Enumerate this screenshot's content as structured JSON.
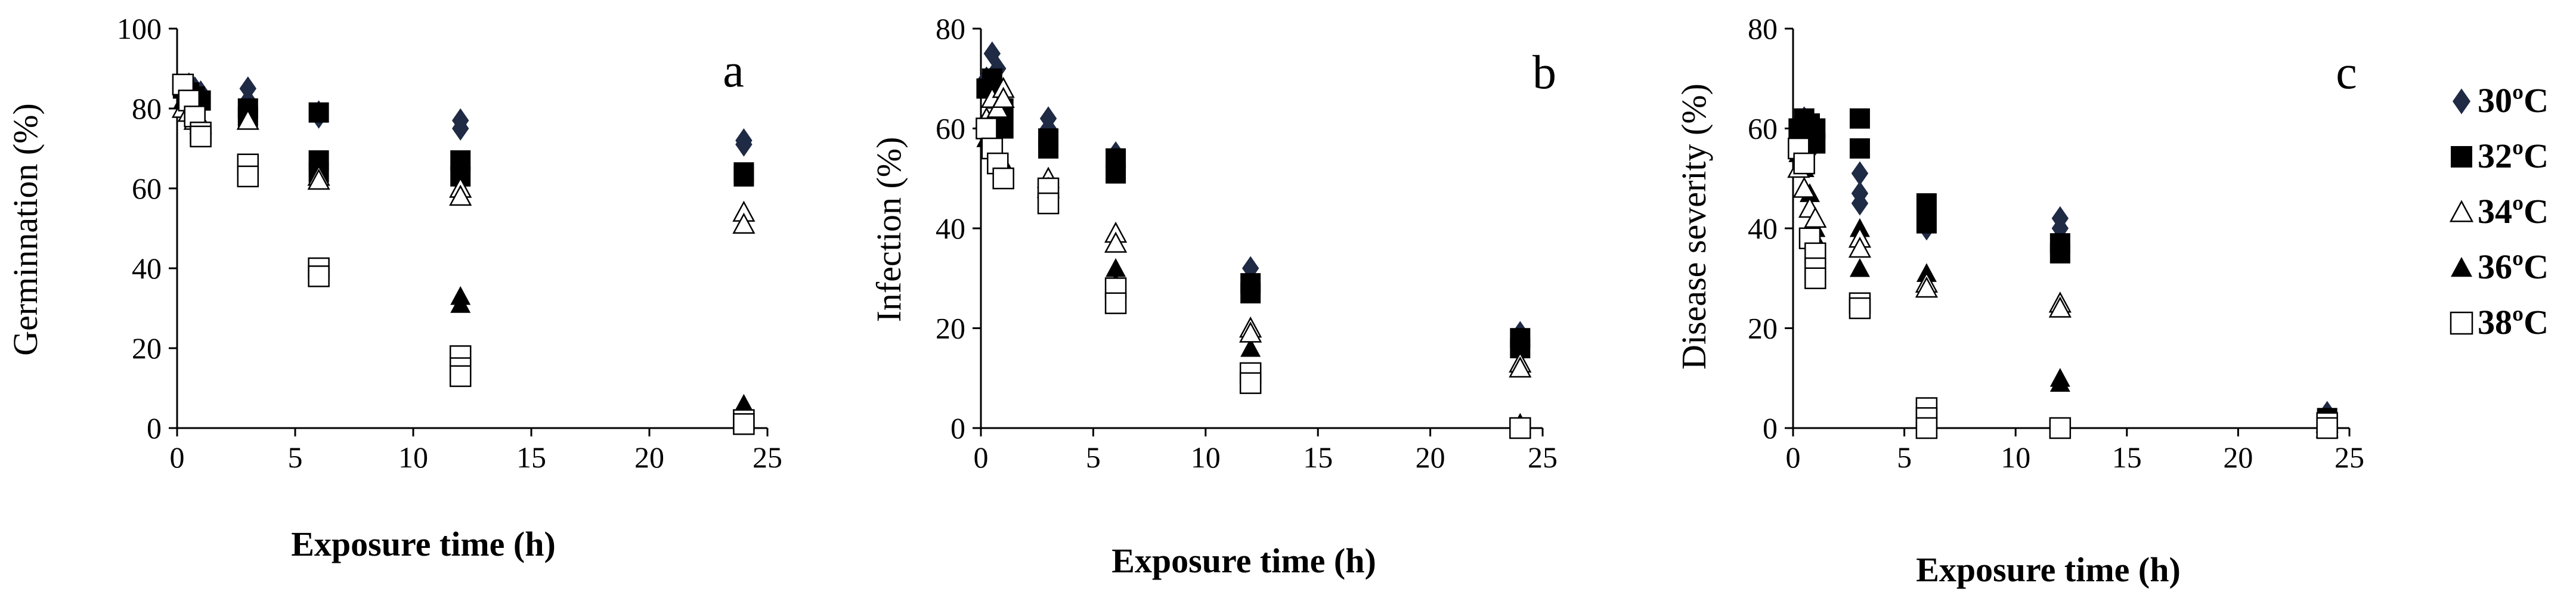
{
  "legend": {
    "items": [
      {
        "label": "30ºC",
        "marker": "diamond",
        "color": "#1f2a44"
      },
      {
        "label": "32ºC",
        "marker": "square-filled",
        "color": "#000000"
      },
      {
        "label": "34ºC",
        "marker": "triangle-open",
        "color": "#000000"
      },
      {
        "label": "36ºC",
        "marker": "triangle-filled",
        "color": "#000000"
      },
      {
        "label": "38ºC",
        "marker": "square-open",
        "color": "#000000"
      }
    ]
  },
  "chart_data": [
    {
      "type": "scatter",
      "panel_label": "a",
      "xlabel": "Exposure time (h)",
      "ylabel": "Germinnation (%)",
      "xlim": [
        0,
        25
      ],
      "ylim": [
        0,
        100
      ],
      "xticks": [
        "0",
        "5",
        "10",
        "15",
        "20",
        "25"
      ],
      "yticks": [
        "0",
        "20",
        "40",
        "60",
        "80",
        "100"
      ],
      "series": [
        {
          "name": "30ºC",
          "points": [
            [
              0.25,
              84
            ],
            [
              0.5,
              86
            ],
            [
              0.75,
              85
            ],
            [
              1,
              84
            ],
            [
              3,
              85
            ],
            [
              3,
              82
            ],
            [
              6,
              79
            ],
            [
              6,
              78
            ],
            [
              12,
              77
            ],
            [
              12,
              75
            ],
            [
              24,
              72
            ],
            [
              24,
              71
            ]
          ]
        },
        {
          "name": "32ºC",
          "points": [
            [
              0.25,
              85
            ],
            [
              0.5,
              84
            ],
            [
              0.75,
              83
            ],
            [
              1,
              82
            ],
            [
              3,
              80
            ],
            [
              3,
              78
            ],
            [
              6,
              79
            ],
            [
              6,
              67
            ],
            [
              6,
              64
            ],
            [
              12,
              67
            ],
            [
              12,
              63
            ],
            [
              24,
              64
            ],
            [
              24,
              63
            ]
          ]
        },
        {
          "name": "34ºC",
          "points": [
            [
              0.25,
              80
            ],
            [
              0.5,
              79
            ],
            [
              0.75,
              77
            ],
            [
              1,
              76
            ],
            [
              3,
              77
            ],
            [
              6,
              63
            ],
            [
              6,
              62
            ],
            [
              12,
              60
            ],
            [
              12,
              58
            ],
            [
              24,
              54
            ],
            [
              24,
              51
            ]
          ]
        },
        {
          "name": "36ºC",
          "points": [
            [
              0.25,
              82
            ],
            [
              0.5,
              80
            ],
            [
              0.75,
              78
            ],
            [
              1,
              77
            ],
            [
              6,
              65
            ],
            [
              12,
              33
            ],
            [
              12,
              31
            ],
            [
              24,
              6
            ],
            [
              24,
              5
            ]
          ]
        },
        {
          "name": "38ºC",
          "points": [
            [
              0.25,
              86
            ],
            [
              0.5,
              82
            ],
            [
              0.75,
              78
            ],
            [
              1,
              74
            ],
            [
              1,
              73
            ],
            [
              3,
              66
            ],
            [
              3,
              63
            ],
            [
              6,
              40
            ],
            [
              6,
              38
            ],
            [
              12,
              18
            ],
            [
              12,
              15
            ],
            [
              12,
              13
            ],
            [
              24,
              2
            ],
            [
              24,
              1
            ]
          ]
        }
      ]
    },
    {
      "type": "scatter",
      "panel_label": "b",
      "xlabel": "Exposure time (h)",
      "ylabel": "Infection (%)",
      "xlim": [
        0,
        25
      ],
      "ylim": [
        0,
        80
      ],
      "xticks": [
        "0",
        "5",
        "10",
        "15",
        "20",
        "25"
      ],
      "yticks": [
        "0",
        "20",
        "40",
        "60",
        "80"
      ],
      "series": [
        {
          "name": "30ºC",
          "points": [
            [
              0.25,
              70
            ],
            [
              0.5,
              75
            ],
            [
              0.75,
              72
            ],
            [
              1,
              65
            ],
            [
              3,
              62
            ],
            [
              3,
              60
            ],
            [
              6,
              55
            ],
            [
              12,
              32
            ],
            [
              12,
              30
            ],
            [
              24,
              19
            ],
            [
              24,
              18
            ]
          ]
        },
        {
          "name": "32ºC",
          "points": [
            [
              0.25,
              68
            ],
            [
              0.5,
              70
            ],
            [
              0.75,
              66
            ],
            [
              1,
              64
            ],
            [
              1,
              60
            ],
            [
              3,
              58
            ],
            [
              3,
              56
            ],
            [
              6,
              54
            ],
            [
              6,
              51
            ],
            [
              12,
              29
            ],
            [
              12,
              27
            ],
            [
              24,
              18
            ],
            [
              24,
              16
            ]
          ]
        },
        {
          "name": "34ºC",
          "points": [
            [
              0.25,
              62
            ],
            [
              0.5,
              66
            ],
            [
              0.75,
              64
            ],
            [
              1,
              68
            ],
            [
              1,
              66
            ],
            [
              3,
              50
            ],
            [
              3,
              48
            ],
            [
              6,
              39
            ],
            [
              6,
              37
            ],
            [
              12,
              20
            ],
            [
              12,
              19
            ],
            [
              24,
              13
            ],
            [
              24,
              12
            ]
          ]
        },
        {
          "name": "36ºC",
          "points": [
            [
              0.25,
              58
            ],
            [
              0.5,
              56
            ],
            [
              0.75,
              55
            ],
            [
              1,
              53
            ],
            [
              3,
              49
            ],
            [
              3,
              46
            ],
            [
              6,
              32
            ],
            [
              6,
              29
            ],
            [
              12,
              20
            ],
            [
              12,
              16
            ],
            [
              24,
              1
            ],
            [
              24,
              0
            ]
          ]
        },
        {
          "name": "38ºC",
          "points": [
            [
              0.25,
              60
            ],
            [
              0.5,
              56
            ],
            [
              0.75,
              53
            ],
            [
              1,
              50
            ],
            [
              3,
              48
            ],
            [
              3,
              45
            ],
            [
              6,
              28
            ],
            [
              6,
              25
            ],
            [
              12,
              11
            ],
            [
              12,
              9
            ],
            [
              24,
              0
            ]
          ]
        }
      ]
    },
    {
      "type": "scatter",
      "panel_label": "c",
      "xlabel": "Exposure time (h)",
      "ylabel": "Disease severity (%)",
      "xlim": [
        0,
        25
      ],
      "ylim": [
        0,
        80
      ],
      "xticks": [
        "0",
        "5",
        "10",
        "15",
        "20",
        "25"
      ],
      "yticks": [
        "0",
        "20",
        "40",
        "60",
        "80"
      ],
      "series": [
        {
          "name": "30ºC",
          "points": [
            [
              0.25,
              58
            ],
            [
              0.5,
              62
            ],
            [
              0.75,
              60
            ],
            [
              1,
              57
            ],
            [
              3,
              51
            ],
            [
              3,
              47
            ],
            [
              3,
              45
            ],
            [
              6,
              40
            ],
            [
              12,
              42
            ],
            [
              12,
              40
            ],
            [
              24,
              3
            ],
            [
              24,
              2
            ]
          ]
        },
        {
          "name": "32ºC",
          "points": [
            [
              0.25,
              60
            ],
            [
              0.5,
              62
            ],
            [
              0.75,
              61
            ],
            [
              1,
              60
            ],
            [
              1,
              57
            ],
            [
              3,
              62
            ],
            [
              3,
              56
            ],
            [
              6,
              45
            ],
            [
              6,
              41
            ],
            [
              12,
              37
            ],
            [
              12,
              35
            ],
            [
              24,
              2
            ],
            [
              24,
              1
            ]
          ]
        },
        {
          "name": "34ºC",
          "points": [
            [
              0.25,
              52
            ],
            [
              0.5,
              48
            ],
            [
              0.75,
              44
            ],
            [
              1,
              42
            ],
            [
              3,
              38
            ],
            [
              3,
              36
            ],
            [
              6,
              29
            ],
            [
              6,
              28
            ],
            [
              12,
              25
            ],
            [
              12,
              24
            ],
            [
              24,
              1
            ],
            [
              24,
              0
            ]
          ]
        },
        {
          "name": "36ºC",
          "points": [
            [
              0.25,
              55
            ],
            [
              0.5,
              52
            ],
            [
              0.75,
              47
            ],
            [
              1,
              40
            ],
            [
              1,
              38
            ],
            [
              3,
              40
            ],
            [
              3,
              36
            ],
            [
              3,
              32
            ],
            [
              6,
              31
            ],
            [
              6,
              29
            ],
            [
              12,
              10
            ],
            [
              12,
              9
            ],
            [
              24,
              1
            ],
            [
              24,
              0
            ]
          ]
        },
        {
          "name": "38ºC",
          "points": [
            [
              0.25,
              56
            ],
            [
              0.5,
              53
            ],
            [
              0.75,
              38
            ],
            [
              1,
              35
            ],
            [
              1,
              32
            ],
            [
              1,
              30
            ],
            [
              3,
              25
            ],
            [
              3,
              24
            ],
            [
              6,
              4
            ],
            [
              6,
              2
            ],
            [
              6,
              0
            ],
            [
              12,
              0
            ],
            [
              24,
              1
            ],
            [
              24,
              0
            ]
          ]
        }
      ]
    }
  ]
}
